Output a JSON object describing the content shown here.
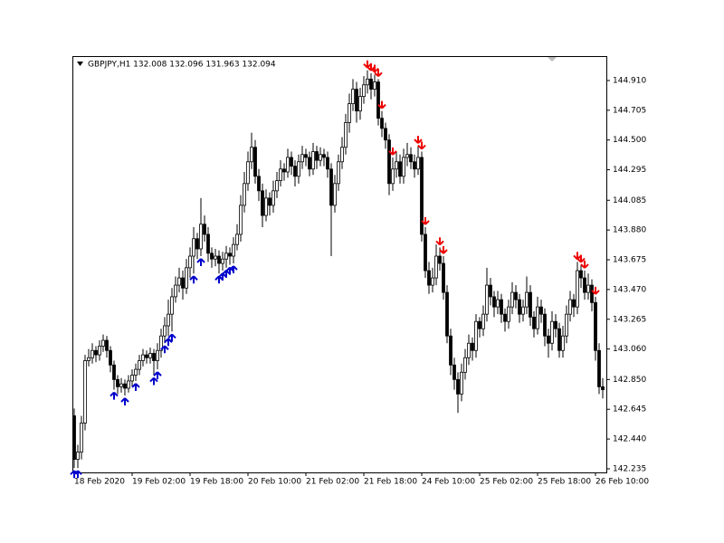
{
  "chart_data": {
    "type": "candlestick",
    "symbol_info": "GBPJPY,H1  132.008 132.096 131.963 132.094",
    "ylim": [
      142.21,
      145.078
    ],
    "yticks": [
      142.235,
      {
        "value": 142.44,
        "label": "142.440"
      },
      142.645,
      {
        "value": 142.85,
        "label": "142.850"
      },
      {
        "value": 143.06,
        "label": "143.060"
      },
      143.265,
      {
        "value": 143.47,
        "label": "143.470"
      },
      143.675,
      {
        "value": 143.88,
        "label": "143.880"
      },
      144.085,
      144.295,
      {
        "value": 144.5,
        "label": "144.500"
      },
      144.705,
      {
        "value": 144.91,
        "label": "144.910"
      }
    ],
    "categories": [
      "18 Feb 2020",
      null,
      null,
      null,
      null,
      null,
      null,
      null,
      null,
      null,
      null,
      null,
      null,
      null,
      null,
      null,
      "19 Feb 02:00",
      null,
      null,
      null,
      null,
      null,
      null,
      null,
      null,
      null,
      null,
      null,
      null,
      null,
      null,
      null,
      "19 Feb 18:00",
      null,
      null,
      null,
      null,
      null,
      null,
      null,
      null,
      null,
      null,
      null,
      null,
      null,
      null,
      null,
      "20 Feb 10:00",
      null,
      null,
      null,
      null,
      null,
      null,
      null,
      null,
      null,
      null,
      null,
      null,
      null,
      null,
      null,
      "21 Feb 02:00",
      null,
      null,
      null,
      null,
      null,
      null,
      null,
      null,
      null,
      null,
      null,
      null,
      null,
      null,
      null,
      "21 Feb 18:00",
      null,
      null,
      null,
      null,
      null,
      null,
      null,
      null,
      null,
      null,
      null,
      null,
      null,
      null,
      null,
      "24 Feb 10:00",
      null,
      null,
      null,
      null,
      null,
      null,
      null,
      null,
      null,
      null,
      null,
      null,
      null,
      null,
      null,
      "25 Feb 02:00",
      null,
      null,
      null,
      null,
      null,
      null,
      null,
      null,
      null,
      null,
      null,
      null,
      null,
      null,
      null,
      "25 Feb 18:00",
      null,
      null,
      null,
      null,
      null,
      null,
      null,
      null,
      null,
      null,
      null,
      null,
      null,
      null,
      null,
      "26 Feb 10:00",
      null,
      null
    ],
    "ohlc": [
      [
        142.6,
        142.65,
        142.24,
        142.3
      ],
      [
        142.3,
        142.4,
        142.24,
        142.35
      ],
      [
        142.35,
        142.6,
        142.3,
        142.55
      ],
      [
        142.55,
        143.02,
        142.5,
        142.98
      ],
      [
        142.98,
        143.06,
        142.94,
        143.0
      ],
      [
        143.0,
        143.1,
        142.96,
        143.05
      ],
      [
        143.05,
        143.08,
        142.97,
        143.02
      ],
      [
        143.02,
        143.12,
        142.98,
        143.08
      ],
      [
        143.08,
        143.16,
        143.04,
        143.12
      ],
      [
        143.12,
        143.15,
        143.0,
        143.05
      ],
      [
        143.05,
        143.08,
        142.9,
        142.95
      ],
      [
        142.95,
        142.98,
        142.78,
        142.85
      ],
      [
        142.85,
        142.88,
        142.75,
        142.8
      ],
      [
        142.8,
        142.86,
        142.76,
        142.82
      ],
      [
        142.82,
        142.85,
        142.74,
        142.79
      ],
      [
        142.79,
        142.88,
        142.76,
        142.84
      ],
      [
        142.84,
        142.92,
        142.8,
        142.88
      ],
      [
        142.88,
        142.96,
        142.84,
        142.92
      ],
      [
        142.92,
        143.02,
        142.88,
        142.98
      ],
      [
        142.98,
        143.06,
        142.94,
        143.02
      ],
      [
        143.02,
        143.05,
        142.96,
        143.0
      ],
      [
        143.0,
        143.07,
        142.96,
        143.03
      ],
      [
        143.03,
        143.06,
        142.88,
        142.98
      ],
      [
        142.98,
        143.1,
        142.92,
        143.05
      ],
      [
        143.05,
        143.2,
        143.0,
        143.15
      ],
      [
        143.15,
        143.28,
        143.1,
        143.22
      ],
      [
        143.22,
        143.4,
        143.15,
        143.3
      ],
      [
        143.3,
        143.48,
        143.18,
        143.42
      ],
      [
        143.42,
        143.56,
        143.38,
        143.5
      ],
      [
        143.5,
        143.62,
        143.45,
        143.55
      ],
      [
        143.55,
        143.6,
        143.4,
        143.48
      ],
      [
        143.48,
        143.68,
        143.44,
        143.62
      ],
      [
        143.62,
        143.76,
        143.55,
        143.7
      ],
      [
        143.7,
        143.9,
        143.58,
        143.82
      ],
      [
        143.82,
        143.86,
        143.68,
        143.75
      ],
      [
        143.75,
        144.1,
        143.7,
        143.92
      ],
      [
        143.92,
        143.98,
        143.8,
        143.85
      ],
      [
        143.85,
        143.9,
        143.66,
        143.72
      ],
      [
        143.72,
        143.76,
        143.62,
        143.68
      ],
      [
        143.68,
        143.75,
        143.63,
        143.7
      ],
      [
        143.7,
        143.74,
        143.58,
        143.65
      ],
      [
        143.65,
        143.73,
        143.6,
        143.68
      ],
      [
        143.68,
        143.77,
        143.62,
        143.72
      ],
      [
        143.72,
        143.76,
        143.64,
        143.7
      ],
      [
        143.7,
        143.83,
        143.65,
        143.78
      ],
      [
        143.78,
        143.92,
        143.74,
        143.85
      ],
      [
        143.85,
        144.12,
        143.8,
        144.05
      ],
      [
        144.05,
        144.28,
        144.0,
        144.2
      ],
      [
        144.2,
        144.42,
        144.15,
        144.35
      ],
      [
        144.35,
        144.55,
        144.3,
        144.45
      ],
      [
        144.45,
        144.5,
        144.2,
        144.25
      ],
      [
        144.25,
        144.3,
        144.08,
        144.15
      ],
      [
        144.15,
        144.2,
        143.9,
        143.98
      ],
      [
        143.98,
        144.16,
        143.94,
        144.1
      ],
      [
        144.1,
        144.14,
        143.98,
        144.05
      ],
      [
        144.05,
        144.22,
        144.0,
        144.15
      ],
      [
        144.15,
        144.28,
        144.1,
        144.22
      ],
      [
        144.22,
        144.36,
        144.18,
        144.3
      ],
      [
        144.3,
        144.34,
        144.22,
        144.28
      ],
      [
        144.28,
        144.44,
        144.24,
        144.38
      ],
      [
        144.38,
        144.42,
        144.26,
        144.32
      ],
      [
        144.32,
        144.36,
        144.18,
        144.25
      ],
      [
        144.25,
        144.4,
        144.2,
        144.35
      ],
      [
        144.35,
        144.46,
        144.3,
        144.4
      ],
      [
        144.4,
        144.44,
        144.32,
        144.38
      ],
      [
        144.38,
        144.42,
        144.25,
        144.3
      ],
      [
        144.3,
        144.48,
        144.26,
        144.42
      ],
      [
        144.42,
        144.46,
        144.3,
        144.36
      ],
      [
        144.36,
        144.45,
        144.32,
        144.4
      ],
      [
        144.4,
        144.44,
        144.32,
        144.38
      ],
      [
        144.38,
        144.42,
        144.24,
        144.3
      ],
      [
        144.3,
        144.34,
        143.7,
        144.05
      ],
      [
        144.05,
        144.26,
        144.0,
        144.2
      ],
      [
        144.2,
        144.4,
        144.15,
        144.35
      ],
      [
        144.35,
        144.52,
        144.3,
        144.45
      ],
      [
        144.45,
        144.68,
        144.4,
        144.62
      ],
      [
        144.62,
        144.82,
        144.55,
        144.75
      ],
      [
        144.75,
        144.92,
        144.7,
        144.85
      ],
      [
        144.85,
        144.9,
        144.62,
        144.7
      ],
      [
        144.7,
        144.86,
        144.64,
        144.8
      ],
      [
        144.8,
        144.94,
        144.75,
        144.88
      ],
      [
        144.88,
        144.98,
        144.82,
        144.92
      ],
      [
        144.92,
        144.96,
        144.78,
        144.85
      ],
      [
        144.85,
        144.95,
        144.8,
        144.9
      ],
      [
        144.9,
        144.92,
        144.6,
        144.65
      ],
      [
        144.65,
        144.7,
        144.52,
        144.58
      ],
      [
        144.58,
        144.62,
        144.44,
        144.5
      ],
      [
        144.5,
        144.54,
        144.12,
        144.2
      ],
      [
        144.2,
        144.38,
        144.15,
        144.3
      ],
      [
        144.3,
        144.42,
        144.24,
        144.35
      ],
      [
        144.35,
        144.4,
        144.2,
        144.25
      ],
      [
        144.25,
        144.44,
        144.2,
        144.38
      ],
      [
        144.38,
        144.48,
        144.32,
        144.4
      ],
      [
        144.4,
        144.45,
        144.3,
        144.35
      ],
      [
        144.35,
        144.4,
        144.24,
        144.3
      ],
      [
        144.3,
        144.46,
        144.26,
        144.38
      ],
      [
        144.38,
        144.42,
        143.8,
        143.85
      ],
      [
        143.85,
        143.9,
        143.55,
        143.6
      ],
      [
        143.6,
        143.66,
        143.44,
        143.5
      ],
      [
        143.5,
        143.62,
        143.45,
        143.55
      ],
      [
        143.55,
        143.78,
        143.5,
        143.7
      ],
      [
        143.7,
        143.76,
        143.6,
        143.65
      ],
      [
        143.65,
        143.7,
        143.4,
        143.45
      ],
      [
        143.45,
        143.5,
        143.1,
        143.15
      ],
      [
        143.15,
        143.2,
        142.88,
        142.95
      ],
      [
        142.95,
        143.0,
        142.78,
        142.85
      ],
      [
        142.85,
        142.9,
        142.62,
        142.75
      ],
      [
        142.75,
        142.96,
        142.7,
        142.9
      ],
      [
        142.9,
        143.06,
        142.85,
        143.0
      ],
      [
        143.0,
        143.16,
        142.95,
        143.1
      ],
      [
        143.1,
        143.14,
        142.98,
        143.05
      ],
      [
        143.05,
        143.3,
        143.0,
        143.25
      ],
      [
        143.25,
        143.28,
        143.14,
        143.2
      ],
      [
        143.2,
        143.36,
        143.15,
        143.3
      ],
      [
        143.3,
        143.62,
        143.25,
        143.5
      ],
      [
        143.5,
        143.55,
        143.36,
        143.42
      ],
      [
        143.42,
        143.46,
        143.28,
        143.35
      ],
      [
        143.35,
        143.46,
        143.3,
        143.4
      ],
      [
        143.4,
        143.44,
        143.24,
        143.3
      ],
      [
        143.3,
        143.34,
        143.18,
        143.25
      ],
      [
        143.25,
        143.4,
        143.2,
        143.35
      ],
      [
        143.35,
        143.52,
        143.3,
        143.45
      ],
      [
        143.45,
        143.5,
        143.34,
        143.4
      ],
      [
        143.4,
        143.44,
        143.24,
        143.3
      ],
      [
        143.3,
        143.4,
        143.25,
        143.35
      ],
      [
        143.35,
        143.56,
        143.3,
        143.45
      ],
      [
        143.45,
        143.5,
        143.22,
        143.28
      ],
      [
        143.28,
        143.32,
        143.14,
        143.2
      ],
      [
        143.2,
        143.42,
        143.16,
        143.35
      ],
      [
        143.35,
        143.4,
        143.24,
        143.3
      ],
      [
        143.3,
        143.34,
        143.08,
        143.15
      ],
      [
        143.15,
        143.2,
        143.0,
        143.1
      ],
      [
        143.1,
        143.32,
        143.05,
        143.25
      ],
      [
        143.25,
        143.3,
        143.14,
        143.2
      ],
      [
        143.2,
        143.24,
        143.0,
        143.05
      ],
      [
        143.05,
        143.22,
        143.0,
        143.15
      ],
      [
        143.15,
        143.36,
        143.1,
        143.3
      ],
      [
        143.3,
        143.46,
        143.25,
        143.4
      ],
      [
        143.4,
        143.44,
        143.28,
        143.35
      ],
      [
        143.35,
        143.66,
        143.3,
        143.6
      ],
      [
        143.6,
        143.64,
        143.48,
        143.55
      ],
      [
        143.55,
        143.6,
        143.4,
        143.45
      ],
      [
        143.45,
        143.58,
        143.4,
        143.5
      ],
      [
        143.5,
        143.54,
        143.32,
        143.38
      ],
      [
        143.38,
        143.42,
        142.98,
        143.05
      ],
      [
        143.05,
        143.1,
        142.75,
        142.8
      ],
      [
        142.8,
        142.86,
        142.72,
        142.78
      ]
    ],
    "buy_signals": [
      0,
      1,
      11,
      14,
      17,
      22,
      23,
      25,
      26,
      27,
      33,
      35,
      40,
      41,
      42,
      43,
      44
    ],
    "buy_color": "#0000cc",
    "sell_signals": [
      81,
      82,
      83,
      84,
      85,
      88,
      95,
      96,
      97,
      101,
      102,
      139,
      140,
      141,
      144
    ],
    "sell_color": "#ee0000"
  }
}
